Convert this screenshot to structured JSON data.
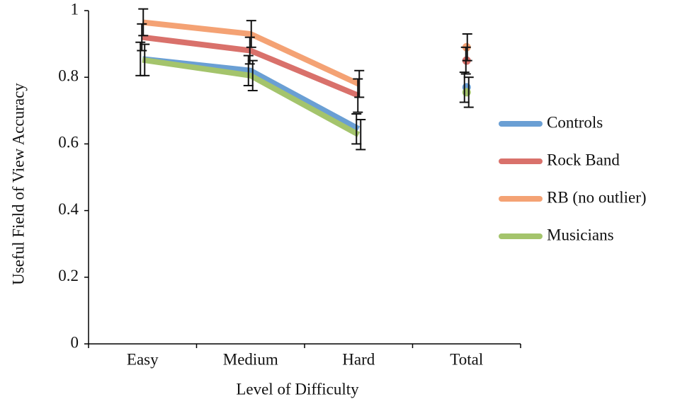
{
  "chart_data": {
    "type": "line",
    "x_label": "Level of Difficulty",
    "y_label": "Useful Field of View Accuracy",
    "categories": [
      "Easy",
      "Medium",
      "Hard",
      "Total"
    ],
    "ylim": [
      0,
      1
    ],
    "yticks": [
      0,
      0.2,
      0.4,
      0.6,
      0.8,
      1
    ],
    "grid": false,
    "legend": "right",
    "series": [
      {
        "name": "Controls",
        "color": "#6a9fd4",
        "values": [
          0.855,
          0.82,
          0.645,
          0.77
        ],
        "errors": [
          0.05,
          0.045,
          0.045,
          0.045
        ]
      },
      {
        "name": "Rock Band",
        "color": "#d9716b",
        "values": [
          0.92,
          0.88,
          0.745,
          0.85
        ],
        "errors": [
          0.04,
          0.04,
          0.05,
          0.04
        ]
      },
      {
        "name": "RB (no outlier)",
        "color": "#f4a274",
        "values": [
          0.965,
          0.93,
          0.78,
          0.89
        ],
        "errors": [
          0.04,
          0.04,
          0.04,
          0.04
        ]
      },
      {
        "name": "Musicians",
        "color": "#a4c46c",
        "values": [
          0.852,
          0.805,
          0.628,
          0.755
        ],
        "errors": [
          0.047,
          0.045,
          0.045,
          0.045
        ]
      }
    ]
  }
}
